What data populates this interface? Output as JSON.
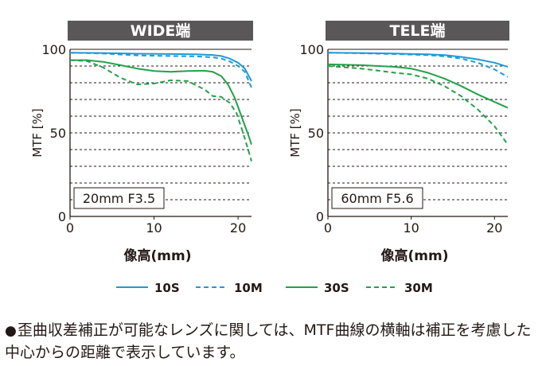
{
  "colors": {
    "series_10": "#1f9ad6",
    "series_30": "#21a24a",
    "banner": "#595757",
    "grid": "#231815"
  },
  "chart_data": [
    {
      "type": "line",
      "title": "WIDE端",
      "annotation": "20mm F3.5",
      "xlabel": "像高(mm)",
      "ylabel": "MTF [%]",
      "xlim": [
        0,
        21.6
      ],
      "ylim": [
        0,
        100
      ],
      "xticks": [
        "0",
        "10",
        "20"
      ],
      "yticks": [
        "0",
        "50",
        "100"
      ],
      "grid": "horizontal dashed every 10%",
      "series": [
        {
          "name": "10S",
          "style": "solid",
          "color": "#1f9ad6",
          "x": [
            0,
            4,
            8,
            12,
            15,
            17,
            18,
            19,
            20,
            20.8,
            21.6
          ],
          "y": [
            98,
            97.8,
            97.4,
            97.2,
            97,
            96.6,
            96,
            94.5,
            92,
            88.5,
            81
          ]
        },
        {
          "name": "10M",
          "style": "dashed",
          "color": "#1f9ad6",
          "x": [
            0,
            4,
            8,
            12,
            15,
            17,
            18,
            19,
            20,
            20.8,
            21.6
          ],
          "y": [
            98,
            97.5,
            96.4,
            96,
            95.8,
            95.2,
            94.5,
            92.8,
            90,
            86.5,
            77
          ]
        },
        {
          "name": "30S",
          "style": "solid",
          "color": "#21a24a",
          "x": [
            0,
            2,
            4,
            6,
            8,
            10,
            12,
            14,
            16,
            17,
            18,
            18.8,
            19.6,
            20.4,
            21.2,
            21.6
          ],
          "y": [
            93.5,
            93.5,
            92.5,
            90.5,
            88.5,
            87,
            86.5,
            87,
            87.2,
            86.5,
            84,
            79,
            71,
            60,
            49,
            43
          ]
        },
        {
          "name": "30M",
          "style": "dashed",
          "color": "#21a24a",
          "x": [
            0,
            2,
            4,
            6,
            8,
            10,
            12,
            14,
            16,
            17,
            18,
            19,
            19.8,
            20.6,
            21.2,
            21.6
          ],
          "y": [
            93.5,
            93,
            89,
            83,
            79,
            79.5,
            81.5,
            81,
            76,
            72,
            71.5,
            68,
            62,
            50,
            40,
            33
          ]
        }
      ]
    },
    {
      "type": "line",
      "title": "TELE端",
      "annotation": "60mm F5.6",
      "xlabel": "像高(mm)",
      "ylabel": "MTF [%]",
      "xlim": [
        0,
        21.6
      ],
      "ylim": [
        0,
        100
      ],
      "xticks": [
        "0",
        "10",
        "20"
      ],
      "yticks": [
        "0",
        "50",
        "100"
      ],
      "grid": "horizontal dashed every 10%",
      "series": [
        {
          "name": "10S",
          "style": "solid",
          "color": "#1f9ad6",
          "x": [
            0,
            4,
            8,
            12,
            14,
            16,
            18,
            20,
            21.6
          ],
          "y": [
            98,
            97.8,
            97.5,
            97,
            96.5,
            95.5,
            94,
            92,
            89.5
          ]
        },
        {
          "name": "10M",
          "style": "dashed",
          "color": "#1f9ad6",
          "x": [
            0,
            4,
            8,
            12,
            14,
            16,
            18,
            20,
            21.6
          ],
          "y": [
            98,
            97.6,
            97.2,
            96.5,
            95.8,
            94.5,
            92,
            88,
            83.5
          ]
        },
        {
          "name": "30S",
          "style": "solid",
          "color": "#21a24a",
          "x": [
            0,
            4,
            8,
            10,
            12,
            14,
            16,
            18,
            20,
            21.6
          ],
          "y": [
            91,
            90.5,
            89.5,
            88.5,
            86,
            82.5,
            78,
            73,
            68.5,
            65
          ]
        },
        {
          "name": "30M",
          "style": "dashed",
          "color": "#21a24a",
          "x": [
            0,
            4,
            8,
            10,
            12,
            14,
            16,
            18,
            20,
            21.6
          ],
          "y": [
            90,
            88.5,
            86,
            85,
            82.5,
            78,
            72,
            64,
            54,
            43
          ]
        }
      ]
    }
  ],
  "legend": [
    {
      "label": "10S",
      "style": "solid",
      "color": "#1f9ad6"
    },
    {
      "label": "10M",
      "style": "dashed",
      "color": "#1f9ad6"
    },
    {
      "label": "30S",
      "style": "solid",
      "color": "#21a24a"
    },
    {
      "label": "30M",
      "style": "dashed",
      "color": "#21a24a"
    }
  ],
  "footnote": {
    "bullet": "●",
    "text": "歪曲収差補正が可能なレンズに関しては、MTF曲線の横軸は補正を考慮した中心からの距離で表示しています。"
  }
}
